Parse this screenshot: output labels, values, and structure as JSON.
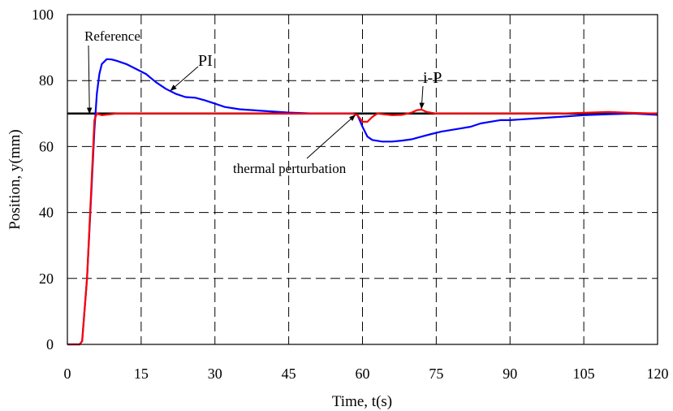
{
  "chart_data": {
    "type": "line",
    "title": "",
    "xlabel": "Time, t(s)",
    "ylabel": "Position, y(mm)",
    "xlim": [
      0,
      120
    ],
    "ylim": [
      0,
      100
    ],
    "xticks": [
      0,
      15,
      30,
      45,
      60,
      75,
      90,
      105,
      120
    ],
    "yticks": [
      0,
      20,
      40,
      60,
      80,
      100
    ],
    "grid": true,
    "reference": {
      "label": "Reference",
      "value": 70,
      "color": "#000000"
    },
    "series": [
      {
        "name": "PI",
        "color": "#0000ff",
        "points": [
          [
            0,
            0
          ],
          [
            2.5,
            0
          ],
          [
            3,
            1
          ],
          [
            4,
            20
          ],
          [
            5,
            50
          ],
          [
            5.5,
            65
          ],
          [
            6,
            76
          ],
          [
            6.5,
            82
          ],
          [
            7,
            85
          ],
          [
            8,
            86.5
          ],
          [
            9,
            86.4
          ],
          [
            10,
            86
          ],
          [
            12,
            85
          ],
          [
            14,
            83.5
          ],
          [
            16,
            82
          ],
          [
            18,
            79.5
          ],
          [
            20,
            77.5
          ],
          [
            22,
            76
          ],
          [
            24,
            75
          ],
          [
            26,
            74.8
          ],
          [
            28,
            74
          ],
          [
            30,
            73
          ],
          [
            32,
            72
          ],
          [
            35,
            71.3
          ],
          [
            40,
            70.8
          ],
          [
            45,
            70.3
          ],
          [
            50,
            70
          ],
          [
            55,
            70
          ],
          [
            58,
            70
          ],
          [
            59,
            69.5
          ],
          [
            60,
            66
          ],
          [
            61,
            63
          ],
          [
            62,
            62
          ],
          [
            64,
            61.5
          ],
          [
            66,
            61.5
          ],
          [
            68,
            61.8
          ],
          [
            70,
            62.2
          ],
          [
            72,
            63
          ],
          [
            74,
            63.8
          ],
          [
            76,
            64.5
          ],
          [
            78,
            65
          ],
          [
            80,
            65.5
          ],
          [
            82,
            66
          ],
          [
            84,
            67
          ],
          [
            86,
            67.5
          ],
          [
            88,
            68
          ],
          [
            90,
            68
          ],
          [
            95,
            68.5
          ],
          [
            100,
            69
          ],
          [
            105,
            69.5
          ],
          [
            110,
            69.8
          ],
          [
            115,
            70
          ],
          [
            120,
            69.6
          ]
        ]
      },
      {
        "name": "i-P",
        "color": "#ff0000",
        "points": [
          [
            0,
            0
          ],
          [
            2.5,
            0
          ],
          [
            3,
            1
          ],
          [
            4,
            20
          ],
          [
            5,
            52
          ],
          [
            5.5,
            68
          ],
          [
            6,
            70
          ],
          [
            7,
            69.5
          ],
          [
            10,
            70
          ],
          [
            15,
            70
          ],
          [
            20,
            70
          ],
          [
            30,
            70
          ],
          [
            40,
            70
          ],
          [
            50,
            70
          ],
          [
            55,
            70
          ],
          [
            58,
            70
          ],
          [
            59,
            69.5
          ],
          [
            60,
            67.5
          ],
          [
            61,
            67.5
          ],
          [
            62,
            69
          ],
          [
            63,
            70
          ],
          [
            66,
            69.5
          ],
          [
            68,
            69.6
          ],
          [
            70,
            70.3
          ],
          [
            71,
            71
          ],
          [
            72,
            71.2
          ],
          [
            73,
            70.5
          ],
          [
            75,
            70
          ],
          [
            80,
            70
          ],
          [
            90,
            70
          ],
          [
            100,
            70
          ],
          [
            110,
            70.5
          ],
          [
            115,
            70.2
          ],
          [
            120,
            70
          ]
        ]
      }
    ],
    "annotations": [
      {
        "text": "Reference",
        "target": [
          4.5,
          70
        ]
      },
      {
        "text": "PI",
        "target": [
          21,
          77
        ]
      },
      {
        "text": "i-P",
        "target": [
          72,
          71.5
        ]
      },
      {
        "text": "thermal perturbation",
        "target": [
          58.5,
          69.5
        ]
      }
    ]
  }
}
